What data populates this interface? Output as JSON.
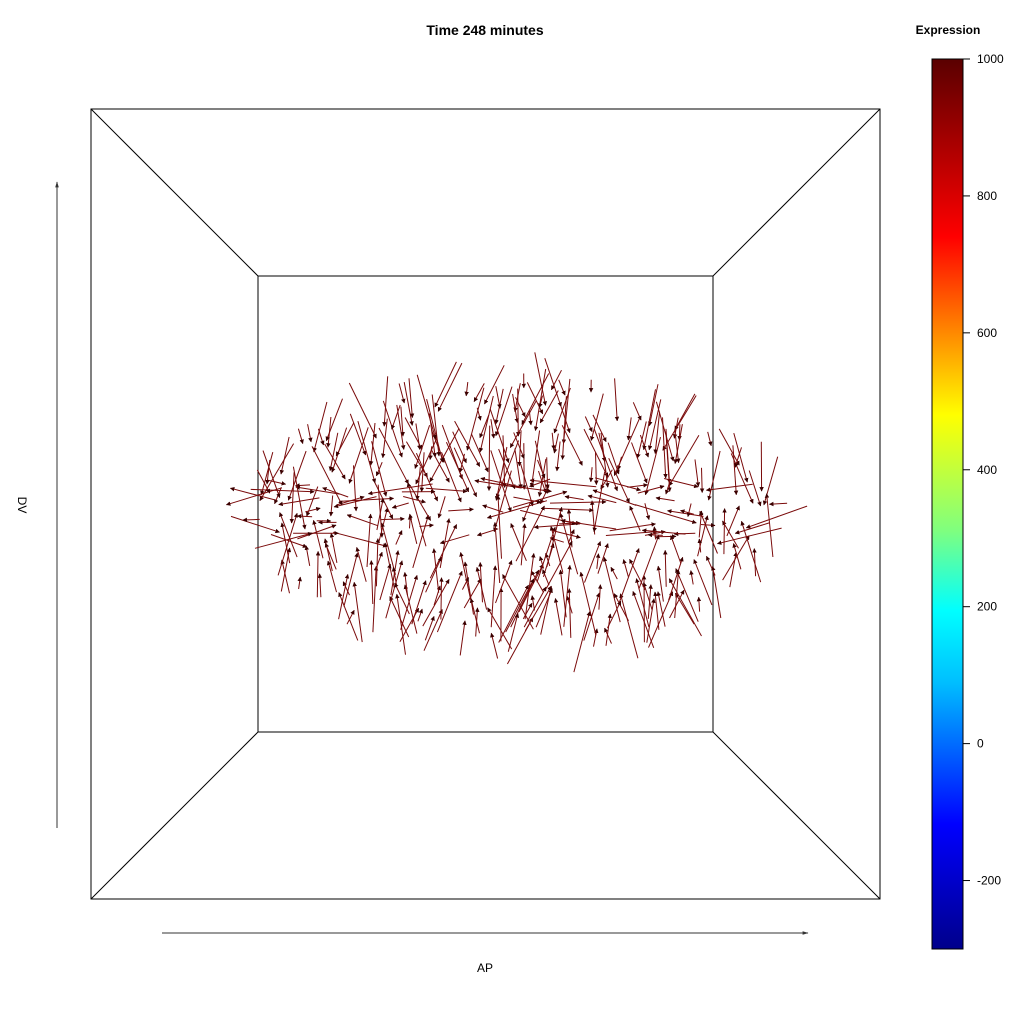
{
  "chart_data": {
    "type": "vector-field",
    "title": "Time 248 minutes",
    "xlabel": "AP",
    "ylabel": "DV",
    "colorbar": {
      "title": "Expression",
      "range": [
        -300,
        1000
      ],
      "ticks": [
        1000,
        800,
        600,
        400,
        200,
        0,
        -200
      ],
      "tick_labels": [
        "1000",
        "800",
        "600",
        "400",
        "200",
        "0",
        "-200"
      ],
      "colormap": [
        "#00008b",
        "#0000ff",
        "#00bfff",
        "#00ffff",
        "#7fff7f",
        "#ffff00",
        "#ff7f00",
        "#ff0000",
        "#7f0000"
      ]
    },
    "arrow_color": "#7a0a0a",
    "arrows": {
      "count": 420,
      "expression_value": 1000,
      "region": "ring-shaped band in the center of the view",
      "dominant_direction": "vertical, pointing toward the horizontal midline"
    },
    "view": "3D box seen along the viewing axis (perspective room)"
  }
}
